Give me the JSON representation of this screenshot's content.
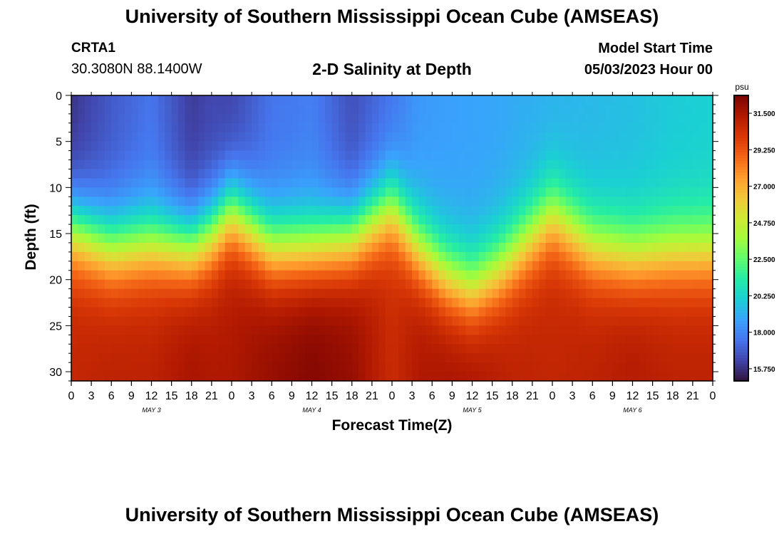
{
  "header": {
    "title": "University of Southern Mississippi Ocean Cube (AMSEAS)",
    "station": "CRTA1",
    "coords": "30.3080N  88.1400W",
    "subtitle": "2-D Salinity at Depth",
    "model_start_label": "Model Start Time",
    "model_start_value": "05/03/2023 Hour 00"
  },
  "footer": {
    "title": "University of Southern Mississippi Ocean Cube (AMSEAS)"
  },
  "colors": {
    "palette": [
      "#30123b",
      "#4145ab",
      "#4675ed",
      "#39a2fc",
      "#1bcfd4",
      "#24eca6",
      "#61fc6c",
      "#a4fc3b",
      "#d1e834",
      "#f3c63a",
      "#fe9b2d",
      "#f36315",
      "#d93806",
      "#b11901",
      "#7a0402"
    ]
  },
  "chart_data": {
    "type": "heatmap",
    "title": "2-D Salinity at Depth",
    "xlabel": "Forecast Time(Z)",
    "ylabel": "Depth (ft)",
    "xlim": [
      0,
      96
    ],
    "ylim": [
      31,
      0
    ],
    "x_tick_labels": [
      "0",
      "3",
      "6",
      "9",
      "12",
      "15",
      "18",
      "21",
      "0",
      "3",
      "6",
      "9",
      "12",
      "15",
      "18",
      "21",
      "0",
      "3",
      "6",
      "9",
      "12",
      "15",
      "18",
      "21",
      "0",
      "3",
      "6",
      "9",
      "12",
      "15",
      "18",
      "21",
      "0"
    ],
    "y_ticks": [
      0,
      5,
      10,
      15,
      20,
      25,
      30
    ],
    "day_labels": [
      {
        "text": "MAY 3",
        "hour": 12
      },
      {
        "text": "MAY 4",
        "hour": 36
      },
      {
        "text": "MAY 5",
        "hour": 60
      },
      {
        "text": "MAY 6",
        "hour": 84
      }
    ],
    "colorbar": {
      "unit": "psu",
      "min": 15.0,
      "max": 32.6,
      "tick_labels": [
        "31.500",
        "29.250",
        "27.000",
        "24.750",
        "22.500",
        "20.250",
        "18.000",
        "15.750"
      ],
      "tick_values": [
        31.5,
        29.25,
        27.0,
        24.75,
        22.5,
        20.25,
        18.0,
        15.75
      ]
    },
    "field": {
      "description": "salinity (psu) by forecast hour and depth",
      "hours": [
        0,
        6,
        12,
        18,
        21,
        24,
        30,
        36,
        42,
        48,
        52,
        56,
        60,
        64,
        66,
        72,
        78,
        84,
        90,
        96
      ],
      "thermocline_depth_ft": [
        14.5,
        16.5,
        16.0,
        16.5,
        15.0,
        12.5,
        16.5,
        16.5,
        15.5,
        12.0,
        16.5,
        19.5,
        21.0,
        19.0,
        17.5,
        13.0,
        16.5,
        17.5,
        17.0,
        17.0
      ],
      "surface_salinity": [
        15.8,
        16.8,
        17.5,
        16.0,
        16.3,
        16.2,
        17.5,
        17.8,
        16.5,
        17.5,
        18.5,
        18.7,
        18.8,
        18.9,
        19.0,
        19.2,
        19.4,
        19.6,
        19.9,
        20.1
      ],
      "bottom_salinity": [
        30.8,
        31.0,
        31.0,
        31.6,
        31.4,
        31.4,
        32.0,
        32.4,
        32.0,
        30.6,
        31.4,
        31.6,
        31.6,
        31.2,
        31.0,
        30.8,
        31.0,
        31.3,
        31.0,
        31.0
      ]
    }
  }
}
